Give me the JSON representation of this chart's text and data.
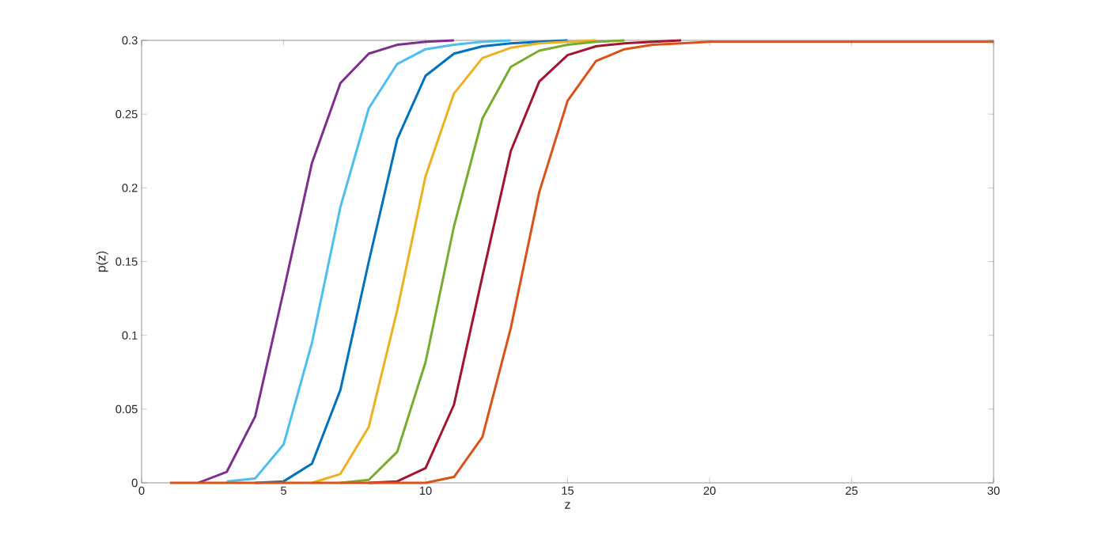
{
  "chart_data": {
    "type": "line",
    "xlabel": "z",
    "ylabel": "p(z)",
    "x": [
      1,
      2,
      3,
      4,
      5,
      6,
      7,
      8,
      9,
      10,
      11,
      12,
      13,
      14,
      15,
      16,
      17,
      18,
      19,
      20,
      21,
      22,
      23,
      24,
      25,
      26,
      27,
      28,
      29,
      30
    ],
    "xlim": [
      0,
      30
    ],
    "xticks": [
      0,
      5,
      10,
      15,
      20,
      25,
      30
    ],
    "ylim": [
      0,
      0.3
    ],
    "yticks": [
      0,
      0.05,
      0.1,
      0.15,
      0.2,
      0.25,
      0.3
    ],
    "grid": false,
    "marker": "none",
    "line_style": "solid",
    "series": [
      {
        "color": "#7e2f8e",
        "values": [
          null,
          0,
          0.0075,
          0.045,
          0.13,
          0.217,
          0.271,
          0.291,
          0.297,
          0.299,
          0.3,
          null,
          null,
          null,
          null,
          null,
          null,
          null,
          null,
          null,
          null,
          null,
          null,
          null,
          null,
          null,
          null,
          null,
          null,
          null
        ]
      },
      {
        "color": "#4dbeee",
        "values": [
          null,
          null,
          0.001,
          0.003,
          0.026,
          0.095,
          0.187,
          0.254,
          0.284,
          0.294,
          0.297,
          0.299,
          0.3,
          null,
          null,
          null,
          null,
          null,
          null,
          null,
          null,
          null,
          null,
          null,
          null,
          null,
          null,
          null,
          null,
          null
        ]
      },
      {
        "color": "#0072bd",
        "values": [
          null,
          null,
          null,
          0,
          0.001,
          0.013,
          0.063,
          0.15,
          0.233,
          0.276,
          0.291,
          0.296,
          0.298,
          0.299,
          0.3,
          null,
          null,
          null,
          null,
          null,
          null,
          null,
          null,
          null,
          null,
          null,
          null,
          null,
          null,
          null
        ]
      },
      {
        "color": "#edb120",
        "values": [
          null,
          null,
          null,
          null,
          null,
          0,
          0.006,
          0.038,
          0.117,
          0.208,
          0.264,
          0.288,
          0.295,
          0.298,
          0.299,
          0.3,
          null,
          null,
          null,
          null,
          null,
          null,
          null,
          null,
          null,
          null,
          null,
          null,
          null,
          null
        ]
      },
      {
        "color": "#77ac30",
        "values": [
          null,
          null,
          null,
          null,
          null,
          null,
          0,
          0.002,
          0.021,
          0.082,
          0.174,
          0.247,
          0.282,
          0.293,
          0.297,
          0.299,
          0.3,
          null,
          null,
          null,
          null,
          null,
          null,
          null,
          null,
          null,
          null,
          null,
          null,
          null
        ]
      },
      {
        "color": "#a2142f",
        "values": [
          null,
          null,
          null,
          null,
          null,
          null,
          null,
          0,
          0.001,
          0.01,
          0.053,
          0.14,
          0.225,
          0.272,
          0.29,
          0.296,
          0.298,
          0.299,
          0.3,
          null,
          null,
          null,
          null,
          null,
          null,
          null,
          null,
          null,
          null,
          null
        ]
      },
      {
        "color": "#d95319",
        "values": [
          0,
          0,
          0,
          0,
          0,
          0,
          0,
          0,
          0,
          0,
          0.004,
          0.031,
          0.105,
          0.197,
          0.259,
          0.286,
          0.294,
          0.297,
          0.298,
          0.299,
          0.299,
          0.299,
          0.299,
          0.299,
          0.299,
          0.299,
          0.299,
          0.299,
          0.299,
          0.299
        ]
      }
    ]
  }
}
